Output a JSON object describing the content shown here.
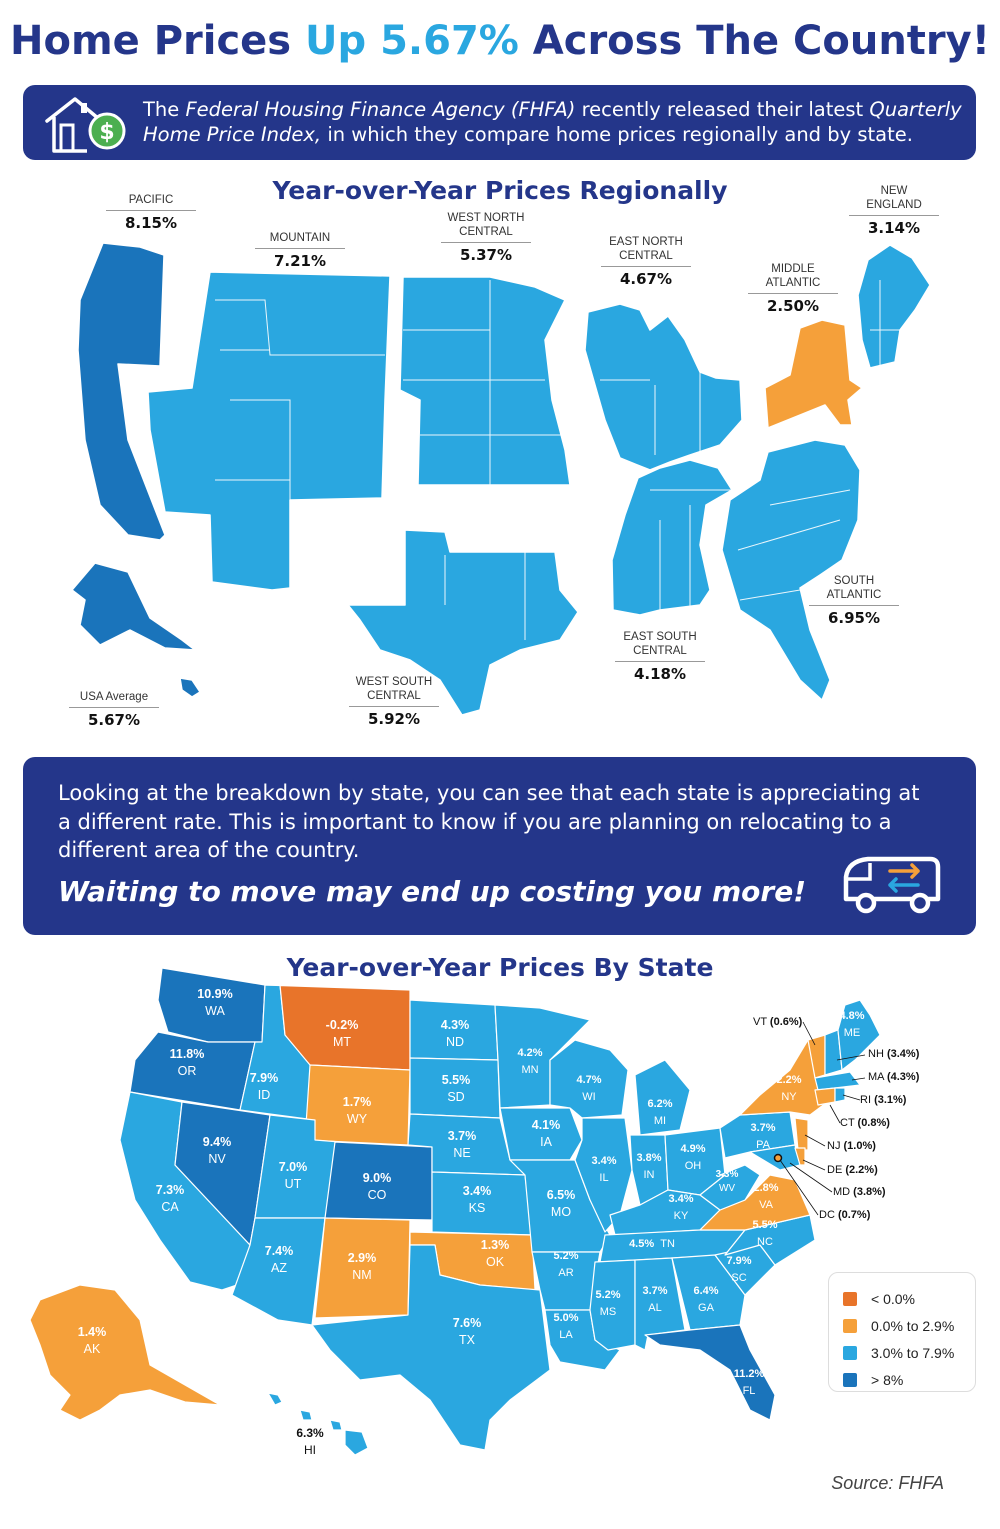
{
  "headline": {
    "part1": "Home Prices ",
    "accent": "Up 5.67%",
    "part2": " Across The Country!"
  },
  "intro": {
    "t1": "The ",
    "t2": "Federal Housing Finance Agency (FHFA)",
    "t3": " recently released their latest ",
    "t4": "Quarterly Home Price Index,",
    "t5": " in which they compare home prices regionally and by state."
  },
  "regional": {
    "title": "Year-over-Year Prices Regionally",
    "regions": [
      {
        "name": "PACIFIC",
        "value": "8.15%",
        "color": "#1a74bb"
      },
      {
        "name": "MOUNTAIN",
        "value": "7.21%",
        "color": "#2aa7e0"
      },
      {
        "name": "WEST NORTH CENTRAL",
        "value": "5.37%",
        "color": "#2aa7e0"
      },
      {
        "name": "EAST NORTH CENTRAL",
        "value": "4.67%",
        "color": "#2aa7e0"
      },
      {
        "name": "MIDDLE ATLANTIC",
        "value": "2.50%",
        "color": "#f5a03a"
      },
      {
        "name": "NEW ENGLAND",
        "value": "3.14%",
        "color": "#2aa7e0"
      },
      {
        "name": "SOUTH ATLANTIC",
        "value": "6.95%",
        "color": "#2aa7e0"
      },
      {
        "name": "EAST SOUTH CENTRAL",
        "value": "4.18%",
        "color": "#2aa7e0"
      },
      {
        "name": "WEST SOUTH CENTRAL",
        "value": "5.92%",
        "color": "#2aa7e0"
      },
      {
        "name": "USA Average",
        "value": "5.67%",
        "color": "#2aa7e0"
      }
    ]
  },
  "mid": {
    "body": "Looking at the breakdown by state, you can see that each state is appreciating at a different rate. This is important to know if you are planning on relocating to a different area of the country.",
    "emphasis": "Waiting to move may end up costing you more!"
  },
  "state_map": {
    "title": "Year-over-Year Prices By State",
    "states": [
      {
        "abbr": "WA",
        "pct": "10.9%"
      },
      {
        "abbr": "OR",
        "pct": "11.8%"
      },
      {
        "abbr": "CA",
        "pct": "7.3%"
      },
      {
        "abbr": "ID",
        "pct": "7.9%"
      },
      {
        "abbr": "NV",
        "pct": "9.4%"
      },
      {
        "abbr": "MT",
        "pct": "-0.2%"
      },
      {
        "abbr": "WY",
        "pct": "1.7%"
      },
      {
        "abbr": "UT",
        "pct": "7.0%"
      },
      {
        "abbr": "AZ",
        "pct": "7.4%"
      },
      {
        "abbr": "CO",
        "pct": "9.0%"
      },
      {
        "abbr": "NM",
        "pct": "2.9%"
      },
      {
        "abbr": "ND",
        "pct": "4.3%"
      },
      {
        "abbr": "SD",
        "pct": "5.5%"
      },
      {
        "abbr": "NE",
        "pct": "3.7%"
      },
      {
        "abbr": "KS",
        "pct": "3.4%"
      },
      {
        "abbr": "OK",
        "pct": "1.3%"
      },
      {
        "abbr": "TX",
        "pct": "7.6%"
      },
      {
        "abbr": "MN",
        "pct": "4.2%"
      },
      {
        "abbr": "IA",
        "pct": "4.1%"
      },
      {
        "abbr": "MO",
        "pct": "6.5%"
      },
      {
        "abbr": "AR",
        "pct": "5.2%"
      },
      {
        "abbr": "LA",
        "pct": "5.0%"
      },
      {
        "abbr": "WI",
        "pct": "4.7%"
      },
      {
        "abbr": "IL",
        "pct": "3.4%"
      },
      {
        "abbr": "MI",
        "pct": "6.2%"
      },
      {
        "abbr": "IN",
        "pct": "3.8%"
      },
      {
        "abbr": "OH",
        "pct": "4.9%"
      },
      {
        "abbr": "KY",
        "pct": "3.4%"
      },
      {
        "abbr": "TN",
        "pct": "4.5%"
      },
      {
        "abbr": "MS",
        "pct": "5.2%"
      },
      {
        "abbr": "AL",
        "pct": "3.7%"
      },
      {
        "abbr": "GA",
        "pct": "6.4%"
      },
      {
        "abbr": "FL",
        "pct": "11.2%"
      },
      {
        "abbr": "SC",
        "pct": "7.9%"
      },
      {
        "abbr": "NC",
        "pct": "5.5%"
      },
      {
        "abbr": "VA",
        "pct": "2.8%"
      },
      {
        "abbr": "WV",
        "pct": "3.3%"
      },
      {
        "abbr": "PA",
        "pct": "3.7%"
      },
      {
        "abbr": "NY",
        "pct": "2.2%"
      },
      {
        "abbr": "ME",
        "pct": "4.8%"
      },
      {
        "abbr": "AK",
        "pct": "1.4%"
      },
      {
        "abbr": "HI",
        "pct": "6.3%"
      }
    ],
    "callouts": [
      {
        "abbr": "VT",
        "pct": "(0.6%)"
      },
      {
        "abbr": "NH",
        "pct": "(3.4%)"
      },
      {
        "abbr": "MA",
        "pct": "(4.3%)"
      },
      {
        "abbr": "RI",
        "pct": "(3.1%)"
      },
      {
        "abbr": "CT",
        "pct": "(0.8%)"
      },
      {
        "abbr": "NJ",
        "pct": "(1.0%)"
      },
      {
        "abbr": "DE",
        "pct": "(2.2%)"
      },
      {
        "abbr": "MD",
        "pct": "(3.8%)"
      },
      {
        "abbr": "DC",
        "pct": "(0.7%)"
      }
    ],
    "legend": [
      {
        "label": "< 0.0%",
        "color": "#e8742a"
      },
      {
        "label": "0.0% to 2.9%",
        "color": "#f5a03a"
      },
      {
        "label": "3.0% to 7.9%",
        "color": "#2aa7e0"
      },
      {
        "label": "> 8%",
        "color": "#1a74bb"
      }
    ]
  },
  "source": "Source: FHFA",
  "colors": {
    "navy": "#24368a",
    "light_blue": "#2aa7e0",
    "dark_blue": "#1a74bb",
    "orange": "#f5a03a",
    "red_orange": "#e8742a"
  }
}
